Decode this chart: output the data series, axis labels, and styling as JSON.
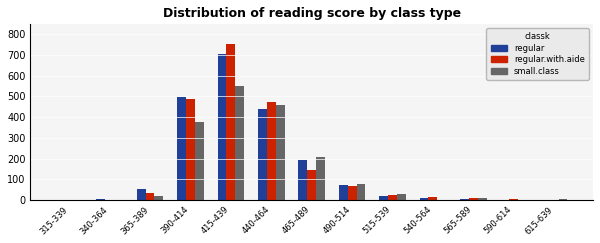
{
  "title": "Distribution of reading score by class type",
  "categories": [
    "315-339",
    "340-364",
    "365-389",
    "390-414",
    "415-439",
    "440-464",
    "465-489",
    "490-514",
    "515-539",
    "540-564",
    "565-589",
    "590-614",
    "615-639"
  ],
  "regular": [
    1,
    4,
    53,
    496,
    703,
    440,
    194,
    74,
    18,
    10,
    4,
    2,
    1
  ],
  "regular_with_aide": [
    0,
    0,
    36,
    490,
    753,
    472,
    145,
    66,
    23,
    13,
    11,
    4,
    2
  ],
  "small_class": [
    0,
    0,
    18,
    376,
    550,
    457,
    206,
    77,
    28,
    0,
    8,
    2,
    3
  ],
  "bar_colors": {
    "regular": "#1f3f99",
    "regular_with_aide": "#cc2200",
    "small_class": "#666666"
  },
  "legend_labels": [
    "regular",
    "regular.with.aide",
    "small.class"
  ],
  "ylim": [
    0,
    850
  ],
  "yticks": [
    0,
    100,
    200,
    300,
    400,
    500,
    600,
    700,
    800
  ],
  "background_color": "#ffffff",
  "chart_area_color": "#f0f0f0"
}
